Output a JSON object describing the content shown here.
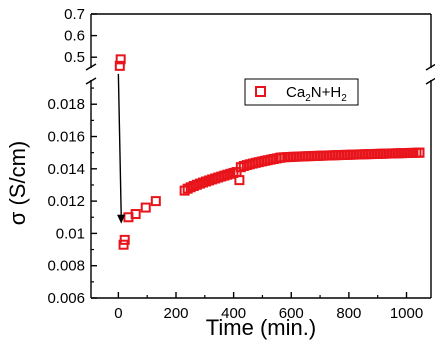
{
  "chart_data": {
    "type": "scatter",
    "xlabel": "Time (min.)",
    "ylabel": "σ (S/cm)",
    "xlim": [
      -95,
      1085
    ],
    "x_ticks": [
      0,
      200,
      400,
      600,
      800,
      1000
    ],
    "broken_y_axis": true,
    "upper_panel": {
      "ylim": [
        0.45,
        0.7
      ],
      "ticks": [
        0.5,
        0.6,
        0.7
      ]
    },
    "lower_panel": {
      "ylim": [
        0.006,
        0.0195
      ],
      "ticks": [
        0.006,
        0.008,
        0.01,
        0.012,
        0.014,
        0.016,
        0.018
      ],
      "tick_labels": [
        "0.006",
        "0.008",
        "0.01",
        "0.012",
        "0.014",
        "0.016",
        "0.018"
      ]
    },
    "legend": {
      "label": "Ca2N+H2",
      "position": "top-right"
    },
    "series": [
      {
        "marker": "open-square",
        "color": "#e8141b",
        "points": [
          {
            "x": 8,
            "y": 0.49
          },
          {
            "x": 5,
            "y": 0.46
          },
          {
            "x": 18,
            "y": 0.0093
          },
          {
            "x": 22,
            "y": 0.0096
          },
          {
            "x": 35,
            "y": 0.011
          },
          {
            "x": 60,
            "y": 0.0112
          },
          {
            "x": 95,
            "y": 0.0116
          },
          {
            "x": 130,
            "y": 0.012
          },
          {
            "x": 420,
            "y": 0.0133
          },
          {
            "x": 1045,
            "y": 0.015
          }
        ],
        "segments": [
          {
            "x_start": 230,
            "x_end": 410,
            "y_start": 0.01265,
            "y_end": 0.0138
          },
          {
            "x_start": 425,
            "x_end": 560,
            "y_start": 0.0141,
            "y_end": 0.01468
          },
          {
            "x_start": 565,
            "x_end": 1045,
            "y_start": 0.0147,
            "y_end": 0.015
          }
        ]
      }
    ],
    "annotation": {
      "type": "arrow",
      "from": {
        "x": 0,
        "y": 0.46
      },
      "to": {
        "x": 10,
        "y": 0.0106
      }
    },
    "marker_color": "#e8141b"
  }
}
